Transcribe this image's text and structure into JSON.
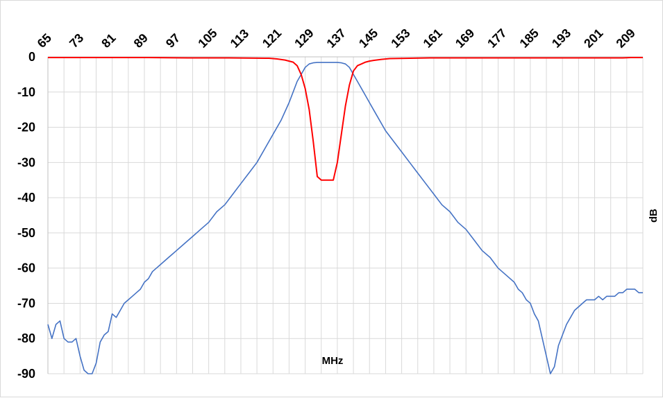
{
  "chart_data": {
    "type": "line",
    "title": "",
    "xlabel": "MHz",
    "ylabel": "dB",
    "x_axis_position": "top",
    "xlim": [
      65,
      213
    ],
    "ylim": [
      -90,
      0
    ],
    "x_ticks": [
      "65",
      "73",
      "81",
      "89",
      "97",
      "105",
      "113",
      "121",
      "129",
      "137",
      "145",
      "153",
      "161",
      "169",
      "177",
      "185",
      "193",
      "201",
      "209"
    ],
    "y_ticks": [
      "0",
      "-10",
      "-20",
      "-30",
      "-40",
      "-50",
      "-60",
      "-70",
      "-80",
      "-90"
    ],
    "grid": true,
    "legend": "none",
    "series": [
      {
        "color": "#4472c4",
        "x": [
          65,
          66,
          67,
          68,
          69,
          70,
          71,
          72,
          73,
          74,
          75,
          76,
          77,
          78,
          79,
          80,
          81,
          82,
          83,
          84,
          85,
          86,
          87,
          88,
          89,
          90,
          91,
          92,
          93,
          94,
          95,
          96,
          97,
          99,
          101,
          103,
          105,
          107,
          109,
          111,
          113,
          115,
          117,
          119,
          121,
          123,
          125,
          126,
          127,
          128,
          129,
          130,
          131,
          132,
          133,
          134,
          135,
          136,
          137,
          138,
          139,
          140,
          141,
          142,
          143,
          144,
          145,
          146,
          147,
          149,
          151,
          153,
          155,
          157,
          159,
          161,
          163,
          165,
          167,
          169,
          171,
          173,
          175,
          177,
          179,
          181,
          182,
          183,
          184,
          185,
          186,
          187,
          188,
          189,
          190,
          191,
          192,
          193,
          194,
          195,
          196,
          197,
          198,
          199,
          200,
          201,
          202,
          203,
          204,
          205,
          206,
          207,
          208,
          209,
          210,
          211,
          212,
          213
        ],
        "y": [
          -76,
          -80,
          -76,
          -75,
          -80,
          -81,
          -81,
          -80,
          -85,
          -89,
          -90,
          -90,
          -87,
          -81,
          -79,
          -78,
          -73,
          -74,
          -72,
          -70,
          -69,
          -68,
          -67,
          -66,
          -64,
          -63,
          -61,
          -60,
          -59,
          -58,
          -57,
          -56,
          -55,
          -53,
          -51,
          -49,
          -47,
          -44,
          -42,
          -39,
          -36,
          -33,
          -30,
          -26,
          -22,
          -18,
          -13,
          -10,
          -7,
          -5,
          -3,
          -2,
          -1.7,
          -1.6,
          -1.6,
          -1.6,
          -1.6,
          -1.6,
          -1.6,
          -1.7,
          -2,
          -3,
          -5,
          -7,
          -9,
          -11,
          -13,
          -15,
          -17,
          -21,
          -24,
          -27,
          -30,
          -33,
          -36,
          -39,
          -42,
          -44,
          -47,
          -49,
          -52,
          -55,
          -57,
          -60,
          -62,
          -64,
          -66,
          -67,
          -69,
          -70,
          -73,
          -75,
          -80,
          -85,
          -90,
          -88,
          -82,
          -79,
          -76,
          -74,
          -72,
          -71,
          -70,
          -69,
          -69,
          -69,
          -68,
          -69,
          -68,
          -68,
          -68,
          -67,
          -67,
          -66,
          -66,
          -66,
          -67,
          -67
        ]
      },
      {
        "color": "#ff0000",
        "x": [
          65,
          80,
          90,
          100,
          110,
          120,
          122,
          124,
          126,
          127,
          128,
          129,
          130,
          131,
          132,
          133,
          134,
          135,
          136,
          137,
          138,
          139,
          140,
          141,
          142,
          143,
          144,
          145,
          146,
          148,
          150,
          155,
          160,
          170,
          180,
          190,
          200,
          205,
          208,
          210,
          213
        ],
        "y": [
          -0.2,
          -0.2,
          -0.2,
          -0.3,
          -0.3,
          -0.4,
          -0.6,
          -0.9,
          -1.5,
          -2.5,
          -5,
          -9,
          -15,
          -24,
          -34,
          -35,
          -35,
          -35,
          -35,
          -30,
          -22,
          -14,
          -8,
          -4,
          -2.5,
          -2,
          -1.5,
          -1.2,
          -1,
          -0.7,
          -0.5,
          -0.4,
          -0.3,
          -0.3,
          -0.3,
          -0.3,
          -0.3,
          -0.3,
          -0.3,
          -0.2,
          -0.2
        ]
      }
    ]
  }
}
